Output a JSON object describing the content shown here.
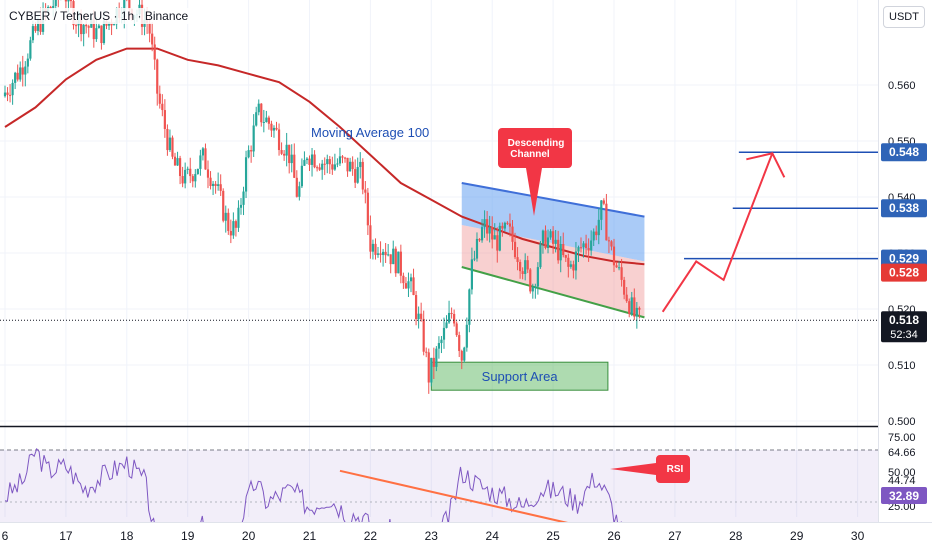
{
  "header": {
    "symbol": "CYBER / TetherUS · 1h · Binance",
    "currency": "USDT"
  },
  "colors": {
    "up": "#26a69a",
    "down": "#ef5350",
    "ma": "#c62828",
    "rsi": "#7e57c2",
    "accent_blue": "#2962ff",
    "annotation_red": "#f23645"
  },
  "chart_data": [
    {
      "type": "candlestick",
      "title": "",
      "x_ticks": [
        "6",
        "17",
        "18",
        "19",
        "20",
        "21",
        "22",
        "23",
        "24",
        "25",
        "26",
        "27",
        "28",
        "29",
        "30"
      ],
      "y_ticks": [
        "0.560",
        "0.550",
        "0.540",
        "0.530",
        "0.520",
        "0.510",
        "0.500"
      ],
      "ylim": [
        0.5,
        0.575
      ],
      "price_path": [
        [
          0,
          0.558
        ],
        [
          0.3,
          0.563
        ],
        [
          0.6,
          0.571
        ],
        [
          1.0,
          0.577
        ],
        [
          1.2,
          0.572
        ],
        [
          1.6,
          0.569
        ],
        [
          2.0,
          0.575
        ],
        [
          2.4,
          0.571
        ],
        [
          2.55,
          0.558
        ],
        [
          2.8,
          0.546
        ],
        [
          3.0,
          0.543
        ],
        [
          3.3,
          0.547
        ],
        [
          3.5,
          0.542
        ],
        [
          3.7,
          0.535
        ],
        [
          3.85,
          0.534
        ],
        [
          4.0,
          0.546
        ],
        [
          4.2,
          0.555
        ],
        [
          4.4,
          0.553
        ],
        [
          4.7,
          0.548
        ],
        [
          4.85,
          0.54
        ],
        [
          5.0,
          0.548
        ],
        [
          5.3,
          0.546
        ],
        [
          5.6,
          0.546
        ],
        [
          5.9,
          0.544
        ],
        [
          6.05,
          0.531
        ],
        [
          6.2,
          0.532
        ],
        [
          6.5,
          0.528
        ],
        [
          6.7,
          0.524
        ],
        [
          6.9,
          0.515
        ],
        [
          7.0,
          0.508
        ],
        [
          7.2,
          0.514
        ],
        [
          7.4,
          0.52
        ],
        [
          7.55,
          0.511
        ],
        [
          7.7,
          0.527
        ],
        [
          7.9,
          0.535
        ],
        [
          8.1,
          0.532
        ],
        [
          8.3,
          0.534
        ],
        [
          8.5,
          0.529
        ],
        [
          8.7,
          0.524
        ],
        [
          8.9,
          0.533
        ],
        [
          9.1,
          0.531
        ],
        [
          9.3,
          0.527
        ],
        [
          9.5,
          0.531
        ],
        [
          9.7,
          0.533
        ],
        [
          9.85,
          0.538
        ],
        [
          10.0,
          0.53
        ],
        [
          10.2,
          0.524
        ],
        [
          10.4,
          0.518
        ]
      ],
      "ma_path": [
        [
          0,
          0.5525
        ],
        [
          0.5,
          0.556
        ],
        [
          1.0,
          0.561
        ],
        [
          1.5,
          0.5645
        ],
        [
          2.0,
          0.5665
        ],
        [
          2.5,
          0.5665
        ],
        [
          3.0,
          0.5645
        ],
        [
          3.5,
          0.5635
        ],
        [
          4.0,
          0.562
        ],
        [
          4.5,
          0.5605
        ],
        [
          5.0,
          0.557
        ],
        [
          5.5,
          0.5525
        ],
        [
          6.0,
          0.5475
        ],
        [
          6.5,
          0.5425
        ],
        [
          7.0,
          0.5395
        ],
        [
          7.5,
          0.5365
        ],
        [
          8.0,
          0.5345
        ],
        [
          8.5,
          0.5325
        ],
        [
          9.0,
          0.531
        ],
        [
          9.5,
          0.5295
        ],
        [
          10.0,
          0.5285
        ],
        [
          10.5,
          0.528
        ]
      ],
      "price_lines": [
        {
          "label": "0.548",
          "price": 0.548
        },
        {
          "label": "0.538",
          "price": 0.538
        },
        {
          "label": "0.529",
          "price": 0.529
        }
      ],
      "ma_value_label": "0.528",
      "current_price": "0.518",
      "countdown": "52:34",
      "channel": {
        "upper": [
          [
            7.5,
            0.5425
          ],
          [
            10.5,
            0.5365
          ]
        ],
        "lower": [
          [
            7.5,
            0.5275
          ],
          [
            10.5,
            0.5185
          ]
        ]
      },
      "support_zone": {
        "x_start": 7.0,
        "x_end": 9.9,
        "price_high": 0.5105,
        "price_low": 0.5055
      },
      "projection": [
        [
          10.8,
          0.5195
        ],
        [
          11.35,
          0.5285
        ],
        [
          11.8,
          0.5252
        ],
        [
          12.6,
          0.5478
        ]
      ],
      "annotations": {
        "moving_average": "Moving Average 100",
        "descending_channel": [
          "Descending",
          "Channel"
        ],
        "support_area": "Support Area"
      }
    },
    {
      "type": "line",
      "title": "",
      "y_ticks": [
        "75.00",
        "64.66",
        "50.00",
        "44.74",
        "25.00"
      ],
      "current_value": "32.89",
      "ylim": [
        22,
        82
      ],
      "band": [
        30,
        70
      ],
      "rsi_path": [
        [
          0,
          52
        ],
        [
          0.3,
          58
        ],
        [
          0.5,
          70
        ],
        [
          0.7,
          62
        ],
        [
          1.0,
          64
        ],
        [
          1.3,
          55
        ],
        [
          1.6,
          60
        ],
        [
          2.0,
          65
        ],
        [
          2.3,
          58
        ],
        [
          2.5,
          32
        ],
        [
          2.8,
          40
        ],
        [
          3.0,
          35
        ],
        [
          3.3,
          42
        ],
        [
          3.6,
          30
        ],
        [
          3.9,
          45
        ],
        [
          4.1,
          58
        ],
        [
          4.3,
          50
        ],
        [
          4.7,
          55
        ],
        [
          5.0,
          48
        ],
        [
          5.3,
          52
        ],
        [
          5.6,
          46
        ],
        [
          5.9,
          44
        ],
        [
          6.1,
          36
        ],
        [
          6.4,
          40
        ],
        [
          6.7,
          32
        ],
        [
          6.9,
          28
        ],
        [
          7.05,
          35
        ],
        [
          7.3,
          45
        ],
        [
          7.5,
          62
        ],
        [
          7.7,
          58
        ],
        [
          7.9,
          55
        ],
        [
          8.2,
          52
        ],
        [
          8.5,
          48
        ],
        [
          8.8,
          55
        ],
        [
          9.1,
          54
        ],
        [
          9.4,
          50
        ],
        [
          9.7,
          60
        ],
        [
          9.9,
          52
        ],
        [
          10.1,
          40
        ],
        [
          10.3,
          32
        ],
        [
          10.5,
          33
        ]
      ],
      "trendline": [
        [
          5.5,
          62
        ],
        [
          9.6,
          40
        ]
      ],
      "annotation": "RSI"
    }
  ]
}
